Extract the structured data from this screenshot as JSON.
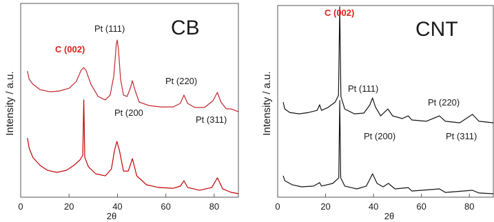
{
  "chart_data": [
    {
      "type": "line",
      "title": "CB",
      "xlabel": "2θ",
      "ylabel": "Intensity / a.u.",
      "xlim": [
        0,
        90
      ],
      "ylim": [
        0,
        100
      ],
      "xticks": [
        0,
        20,
        40,
        60,
        80
      ],
      "grid": false,
      "legend": "none",
      "accent_color": "#e0201e",
      "annotations": [
        {
          "text": "C (002)"
        },
        {
          "text": "Pt (111)"
        },
        {
          "text": "Pt (200"
        },
        {
          "text": "Pt (220)"
        },
        {
          "text": "Pt (311)"
        }
      ],
      "series": [
        {
          "color": "#c0272d",
          "points": [
            [
              2.8,
              65.1
            ],
            [
              3.5,
              60.9
            ],
            [
              5,
              58.4
            ],
            [
              8,
              55.5
            ],
            [
              12,
              54.4
            ],
            [
              16,
              54.8
            ],
            [
              20,
              56.2
            ],
            [
              23,
              59.8
            ],
            [
              25,
              65.5
            ],
            [
              26,
              66.9
            ],
            [
              27,
              65.5
            ],
            [
              29,
              58.4
            ],
            [
              32,
              52.0
            ],
            [
              35,
              50.2
            ],
            [
              37,
              52.7
            ],
            [
              38.5,
              62.6
            ],
            [
              39.5,
              78.6
            ],
            [
              39.9,
              81.1
            ],
            [
              40.4,
              76.9
            ],
            [
              41.3,
              60.9
            ],
            [
              42.5,
              52.7
            ],
            [
              44,
              52.0
            ],
            [
              45.3,
              56.2
            ],
            [
              46.2,
              60.1
            ],
            [
              47.2,
              55.5
            ],
            [
              49,
              49.1
            ],
            [
              53,
              47.3
            ],
            [
              58,
              46.6
            ],
            [
              63,
              46.6
            ],
            [
              66,
              48.4
            ],
            [
              67.5,
              52.7
            ],
            [
              69,
              48.4
            ],
            [
              72,
              46.3
            ],
            [
              76,
              46.3
            ],
            [
              79.5,
              49.8
            ],
            [
              81.3,
              54.1
            ],
            [
              82.8,
              49.1
            ],
            [
              85,
              45.6
            ],
            [
              87,
              45.6
            ],
            [
              90,
              44.1
            ]
          ]
        },
        {
          "color": "#c00000",
          "points": [
            [
              2.8,
              30.6
            ],
            [
              3.5,
              25.3
            ],
            [
              5,
              20.6
            ],
            [
              8,
              16.4
            ],
            [
              11,
              13.9
            ],
            [
              15,
              12.8
            ],
            [
              19,
              13.9
            ],
            [
              22,
              16.4
            ],
            [
              24.5,
              19.2
            ],
            [
              25.7,
              21.7
            ],
            [
              26.1,
              50.2
            ],
            [
              26.5,
              20.6
            ],
            [
              28,
              15.7
            ],
            [
              31,
              12.1
            ],
            [
              35,
              11.0
            ],
            [
              37.5,
              14.6
            ],
            [
              38.8,
              24.2
            ],
            [
              39.8,
              28.8
            ],
            [
              40.8,
              24.2
            ],
            [
              42.5,
              13.5
            ],
            [
              44.5,
              13.5
            ],
            [
              46.2,
              19.9
            ],
            [
              48,
              11.0
            ],
            [
              52,
              6.4
            ],
            [
              57,
              5.0
            ],
            [
              63,
              4.6
            ],
            [
              66,
              5.7
            ],
            [
              67.5,
              8.5
            ],
            [
              69,
              5.0
            ],
            [
              74,
              3.6
            ],
            [
              79,
              5.0
            ],
            [
              81.3,
              10.0
            ],
            [
              83.5,
              4.3
            ],
            [
              87,
              2.5
            ],
            [
              90,
              1.8
            ]
          ]
        }
      ]
    },
    {
      "type": "line",
      "title": "CNT",
      "xlabel": "2θ",
      "ylabel": "Intensity / a.u.",
      "xlim": [
        0,
        90
      ],
      "ylim": [
        0,
        100
      ],
      "xticks": [
        0,
        20,
        40,
        60,
        80
      ],
      "grid": false,
      "legend": "none",
      "accent_color": "#e0201e",
      "annotations": [
        {
          "text": "C (002)"
        },
        {
          "text": "Pt (111)"
        },
        {
          "text": "Pt (200)"
        },
        {
          "text": "Pt (220)"
        },
        {
          "text": "Pt (311)"
        }
      ],
      "series": [
        {
          "color": "#111111",
          "points": [
            [
              2.3,
              49.6
            ],
            [
              3,
              46.0
            ],
            [
              5,
              44.2
            ],
            [
              9,
              43.5
            ],
            [
              13,
              44.2
            ],
            [
              16.5,
              45.3
            ],
            [
              17.5,
              48.2
            ],
            [
              18.3,
              45.3
            ],
            [
              21,
              46.8
            ],
            [
              24,
              49.6
            ],
            [
              25.4,
              53.2
            ],
            [
              25.9,
              99.3
            ],
            [
              26.4,
              52.5
            ],
            [
              28,
              46.0
            ],
            [
              32,
              43.5
            ],
            [
              36,
              43.9
            ],
            [
              38.5,
              48.2
            ],
            [
              39.6,
              51.8
            ],
            [
              40.8,
              47.1
            ],
            [
              43,
              42.4
            ],
            [
              46,
              46.0
            ],
            [
              48,
              42.4
            ],
            [
              52,
              41.0
            ],
            [
              54.5,
              42.4
            ],
            [
              56,
              40.3
            ],
            [
              62,
              39.6
            ],
            [
              67.5,
              42.4
            ],
            [
              70,
              39.6
            ],
            [
              76,
              38.8
            ],
            [
              81.3,
              43.2
            ],
            [
              84,
              39.6
            ],
            [
              90,
              38.8
            ]
          ]
        },
        {
          "color": "#111111",
          "points": [
            [
              2.3,
              11.2
            ],
            [
              3,
              8.6
            ],
            [
              6,
              6.5
            ],
            [
              10,
              5.4
            ],
            [
              15,
              5.8
            ],
            [
              17.5,
              7.6
            ],
            [
              18.3,
              5.8
            ],
            [
              23,
              7.2
            ],
            [
              25.5,
              10.1
            ],
            [
              25.9,
              50.5
            ],
            [
              26.3,
              10.1
            ],
            [
              28,
              5.8
            ],
            [
              33,
              4.3
            ],
            [
              37,
              5.8
            ],
            [
              39.6,
              12.2
            ],
            [
              41.5,
              7.2
            ],
            [
              44,
              5.4
            ],
            [
              46.2,
              7.2
            ],
            [
              49,
              4.3
            ],
            [
              54.5,
              5.0
            ],
            [
              56,
              3.2
            ],
            [
              67.5,
              4.3
            ],
            [
              70,
              2.5
            ],
            [
              81.3,
              3.6
            ],
            [
              84,
              2.2
            ],
            [
              90,
              1.8
            ]
          ]
        }
      ]
    }
  ]
}
